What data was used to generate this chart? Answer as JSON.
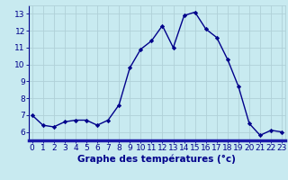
{
  "hours": [
    0,
    1,
    2,
    3,
    4,
    5,
    6,
    7,
    8,
    9,
    10,
    11,
    12,
    13,
    14,
    15,
    16,
    17,
    18,
    19,
    20,
    21,
    22,
    23
  ],
  "temps": [
    7.0,
    6.4,
    6.3,
    6.6,
    6.7,
    6.7,
    6.4,
    6.7,
    7.6,
    9.8,
    10.9,
    11.4,
    12.3,
    11.0,
    12.9,
    13.1,
    12.1,
    11.6,
    10.3,
    8.7,
    6.5,
    5.8,
    6.1,
    6.0
  ],
  "line_color": "#00008b",
  "marker": "D",
  "marker_size": 2.2,
  "bg_color": "#c8eaf0",
  "grid_color": "#b0d0d8",
  "xlabel": "Graphe des températures (°c)",
  "xlabel_color": "#00008b",
  "xlabel_fontsize": 7.5,
  "ylim": [
    5.5,
    13.5
  ],
  "yticks": [
    6,
    7,
    8,
    9,
    10,
    11,
    12,
    13
  ],
  "tick_color": "#00008b",
  "tick_fontsize": 6.5,
  "axis_line_color": "#00008b",
  "line_width": 1.0,
  "bottom_bar_color": "#1a1aaa"
}
